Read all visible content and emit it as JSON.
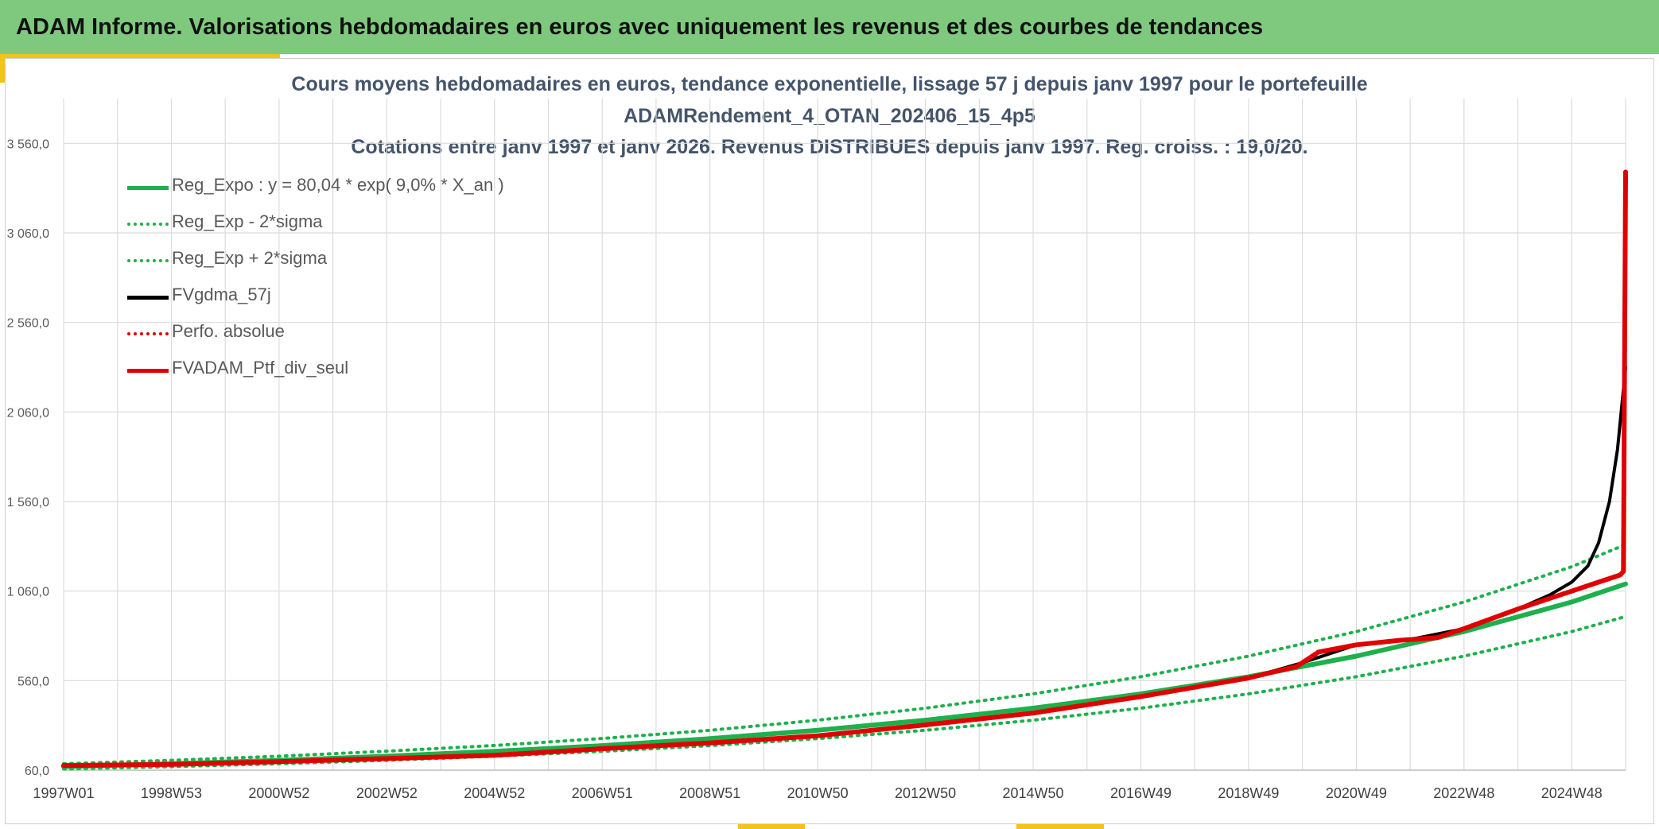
{
  "header": {
    "title": "ADAM Informe. Valorisations hebdomadaires en euros avec uniquement les revenus et des courbes de tendances"
  },
  "chart_data": {
    "type": "line",
    "title_lines": [
      "Cours moyens hebdomadaires en euros, tendance exponentielle, lissage 57 j depuis janv 1997 pour le portefeuille",
      "ADAMRendement_4_OTAN_202406_15_4p5",
      "Cotations entre janv 1997 et janv 2026. Revenus DISTRIBUES depuis janv 1997. Reg. croiss. : 19,0/20."
    ],
    "xlabel": "",
    "ylabel": "",
    "x_range": [
      1997.0,
      2026.0
    ],
    "x_tick_labels": [
      "1997W01",
      "1998W53",
      "2000W52",
      "2002W52",
      "2004W52",
      "2006W51",
      "2008W51",
      "2010W50",
      "2012W50",
      "2014W50",
      "2016W49",
      "2018W49",
      "2020W49",
      "2022W48",
      "2024W48"
    ],
    "x_tick_years": [
      1997.0,
      1999.0,
      2001.0,
      2003.0,
      2005.0,
      2007.0,
      2009.0,
      2011.0,
      2013.0,
      2015.0,
      2017.0,
      2019.0,
      2021.0,
      2023.0,
      2025.0
    ],
    "ylim": [
      60,
      3810
    ],
    "y_ticks": [
      60,
      560,
      1060,
      1560,
      2060,
      2560,
      3060,
      3560
    ],
    "y_tick_labels": [
      "60,0",
      "560,0",
      "1 060,0",
      "1 560,0",
      "2 060,0",
      "2 560,0",
      "3 060,0",
      "3 560,0"
    ],
    "grid": true,
    "legend_position": "top-left",
    "series": [
      {
        "name": "Reg_Expo : y = 80,04 * exp( 9,0% *  X_an )",
        "style": "solid",
        "color": "#1db04c",
        "width": 6,
        "x": [
          1997,
          1999,
          2001,
          2003,
          2005,
          2007,
          2009,
          2011,
          2013,
          2015,
          2017,
          2019,
          2021,
          2023,
          2025,
          2026
        ],
        "values": [
          80,
          96,
          115,
          138,
          165,
          197,
          236,
          283,
          339,
          406,
          486,
          582,
          697,
          834,
          999,
          1100
        ]
      },
      {
        "name": "Reg_Exp - 2*sigma",
        "style": "dotted",
        "color": "#1db04c",
        "width": 4,
        "x": [
          1997,
          1999,
          2001,
          2003,
          2005,
          2007,
          2009,
          2011,
          2013,
          2015,
          2017,
          2019,
          2021,
          2023,
          2025,
          2026
        ],
        "values": [
          67,
          80,
          96,
          115,
          138,
          165,
          197,
          236,
          283,
          339,
          406,
          486,
          582,
          697,
          834,
          918
        ]
      },
      {
        "name": "Reg_Exp + 2*sigma",
        "style": "dotted",
        "color": "#1db04c",
        "width": 4,
        "x": [
          1997,
          1999,
          2001,
          2003,
          2005,
          2007,
          2009,
          2011,
          2013,
          2015,
          2017,
          2019,
          2021,
          2023,
          2025,
          2026
        ],
        "values": [
          96,
          115,
          138,
          166,
          198,
          237,
          283,
          339,
          406,
          486,
          582,
          697,
          834,
          999,
          1196,
          1320
        ]
      },
      {
        "name": "FVgdma_57j",
        "style": "solid",
        "color": "#000000",
        "width": 4,
        "x": [
          1997,
          1999,
          2001,
          2003,
          2005,
          2007,
          2009,
          2011,
          2013,
          2015,
          2017,
          2019,
          2020,
          2021,
          2022,
          2023,
          2024,
          2024.6,
          2025.0,
          2025.3,
          2025.5,
          2025.7,
          2025.85,
          2026
        ],
        "values": [
          86,
          92,
          108,
          125,
          143,
          180,
          212,
          252,
          313,
          379,
          471,
          575,
          660,
          760,
          790,
          850,
          960,
          1040,
          1110,
          1200,
          1330,
          1560,
          1850,
          2310
        ]
      },
      {
        "name": "Perfo. absolue",
        "style": "dotted",
        "color": "#e00000",
        "width": 4,
        "x": [],
        "values": []
      },
      {
        "name": "FVADAM_Ptf_div_seul",
        "style": "solid",
        "color": "#e00000",
        "width": 6,
        "x": [
          1997,
          1999,
          2001,
          2003,
          2005,
          2007,
          2009,
          2011,
          2013,
          2015,
          2017,
          2019,
          2019.9,
          2020.3,
          2021,
          2021.8,
          2022.5,
          2023,
          2024,
          2024.6,
          2025.0,
          2025.5,
          2025.9,
          2025.96,
          2026.0
        ],
        "values": [
          86,
          92,
          108,
          125,
          143,
          180,
          212,
          252,
          313,
          379,
          471,
          575,
          640,
          720,
          760,
          785,
          800,
          850,
          960,
          1020,
          1060,
          1110,
          1150,
          1170,
          3400
        ]
      }
    ]
  }
}
